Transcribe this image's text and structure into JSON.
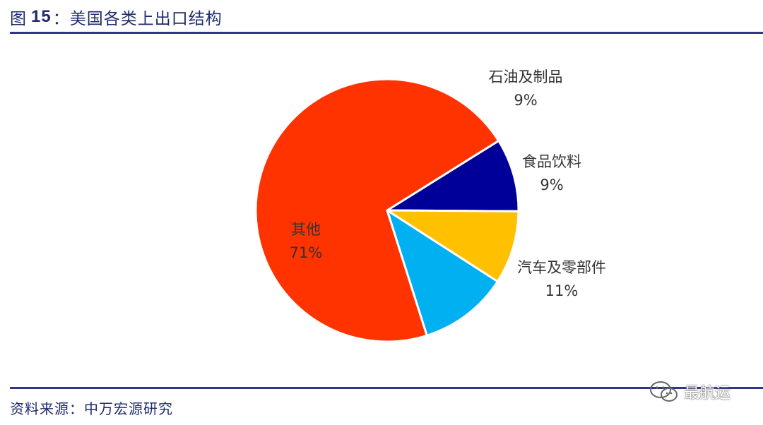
{
  "header": {
    "prefix": "图",
    "number": "15",
    "title": "：美国各类上出口结构"
  },
  "source": {
    "text": "资料来源：中万宏源研究"
  },
  "watermark": {
    "text": "最航运",
    "icon": "wechat-icon"
  },
  "colors": {
    "rule": "#2f3687",
    "header_text": "#1f2b6c"
  },
  "chart_data": {
    "type": "pie",
    "start_angle_deg": 32,
    "direction": "clockwise",
    "slices": [
      {
        "label": "石油及制品",
        "value": 9,
        "value_label": "9%",
        "color": "#000099"
      },
      {
        "label": "食品饮料",
        "value": 9,
        "value_label": "9%",
        "color": "#ffc000"
      },
      {
        "label": "汽车及零部件",
        "value": 11,
        "value_label": "11%",
        "color": "#00b0f0"
      },
      {
        "label": "其他",
        "value": 71,
        "value_label": "71%",
        "color": "#ff3300"
      }
    ]
  }
}
